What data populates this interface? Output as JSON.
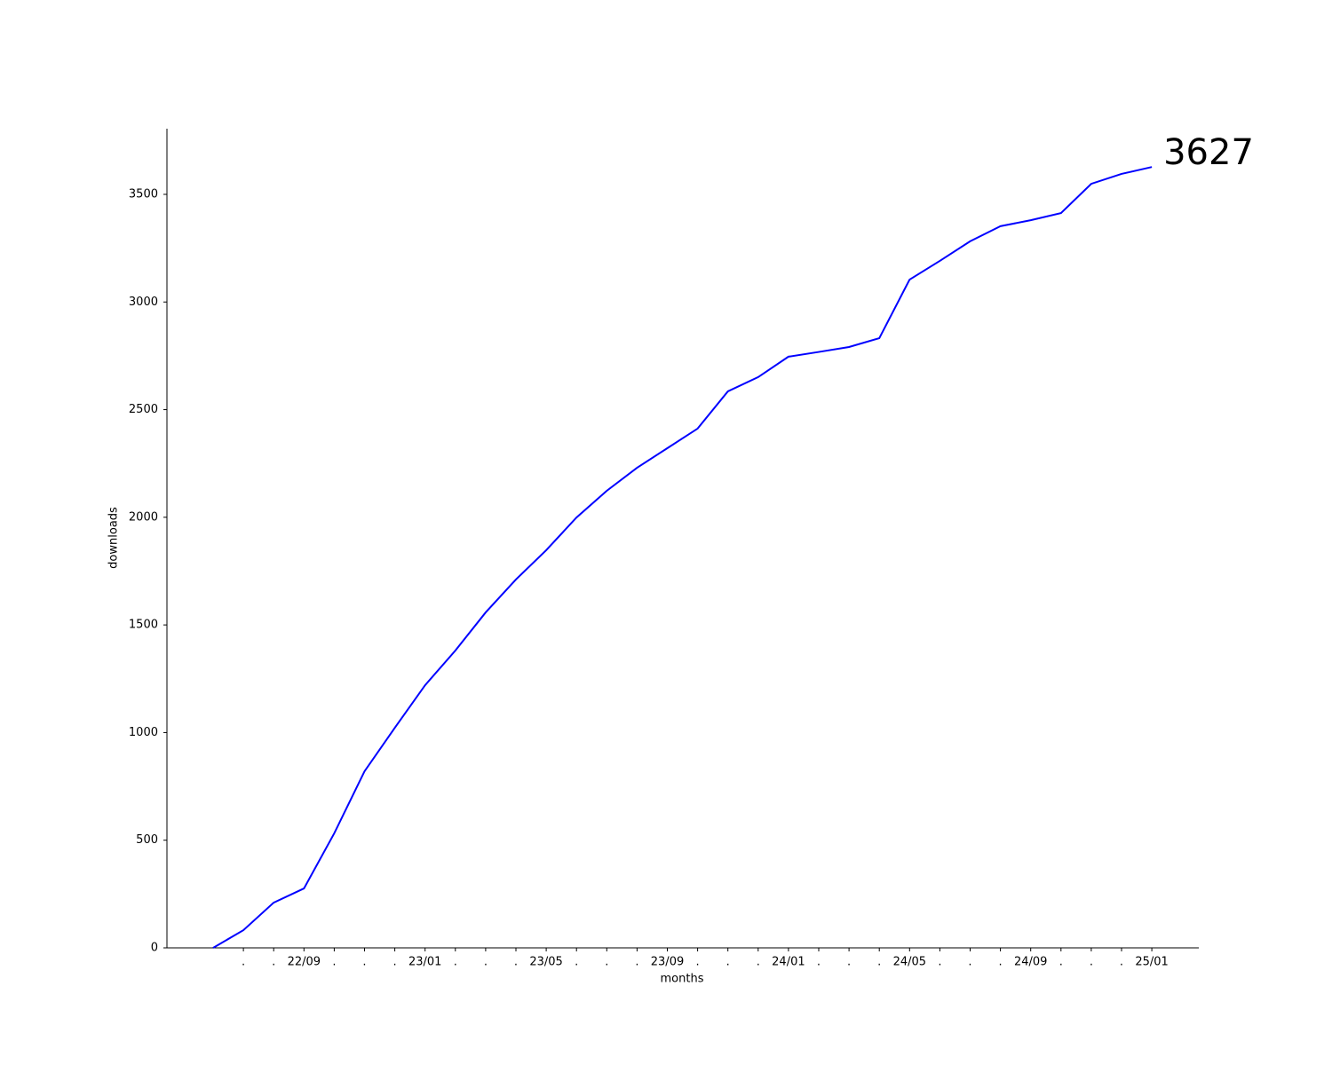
{
  "chart_data": {
    "type": "line",
    "categories": [
      null,
      ".",
      ".",
      "22/09",
      ".",
      ".",
      ".",
      "23/01",
      ".",
      ".",
      ".",
      "23/05",
      ".",
      ".",
      ".",
      "23/09",
      ".",
      ".",
      ".",
      "24/01",
      ".",
      ".",
      ".",
      "24/05",
      ".",
      ".",
      ".",
      "24/09",
      ".",
      ".",
      ".",
      "25/01"
    ],
    "values": [
      0,
      82,
      210,
      276,
      532,
      820,
      1022,
      1220,
      1381,
      1558,
      1711,
      1847,
      1999,
      2123,
      2230,
      2321,
      2412,
      2585,
      2651,
      2746,
      2768,
      2791,
      2832,
      3104,
      3191,
      3282,
      3352,
      3380,
      3413,
      3549,
      3595,
      3627
    ],
    "color": "#0000ff",
    "xlabel": "months",
    "ylabel": "downloads",
    "ylim": [
      0,
      3805
    ],
    "yticks": [
      0,
      500,
      1000,
      1500,
      2000,
      2500,
      3000,
      3500
    ]
  }
}
